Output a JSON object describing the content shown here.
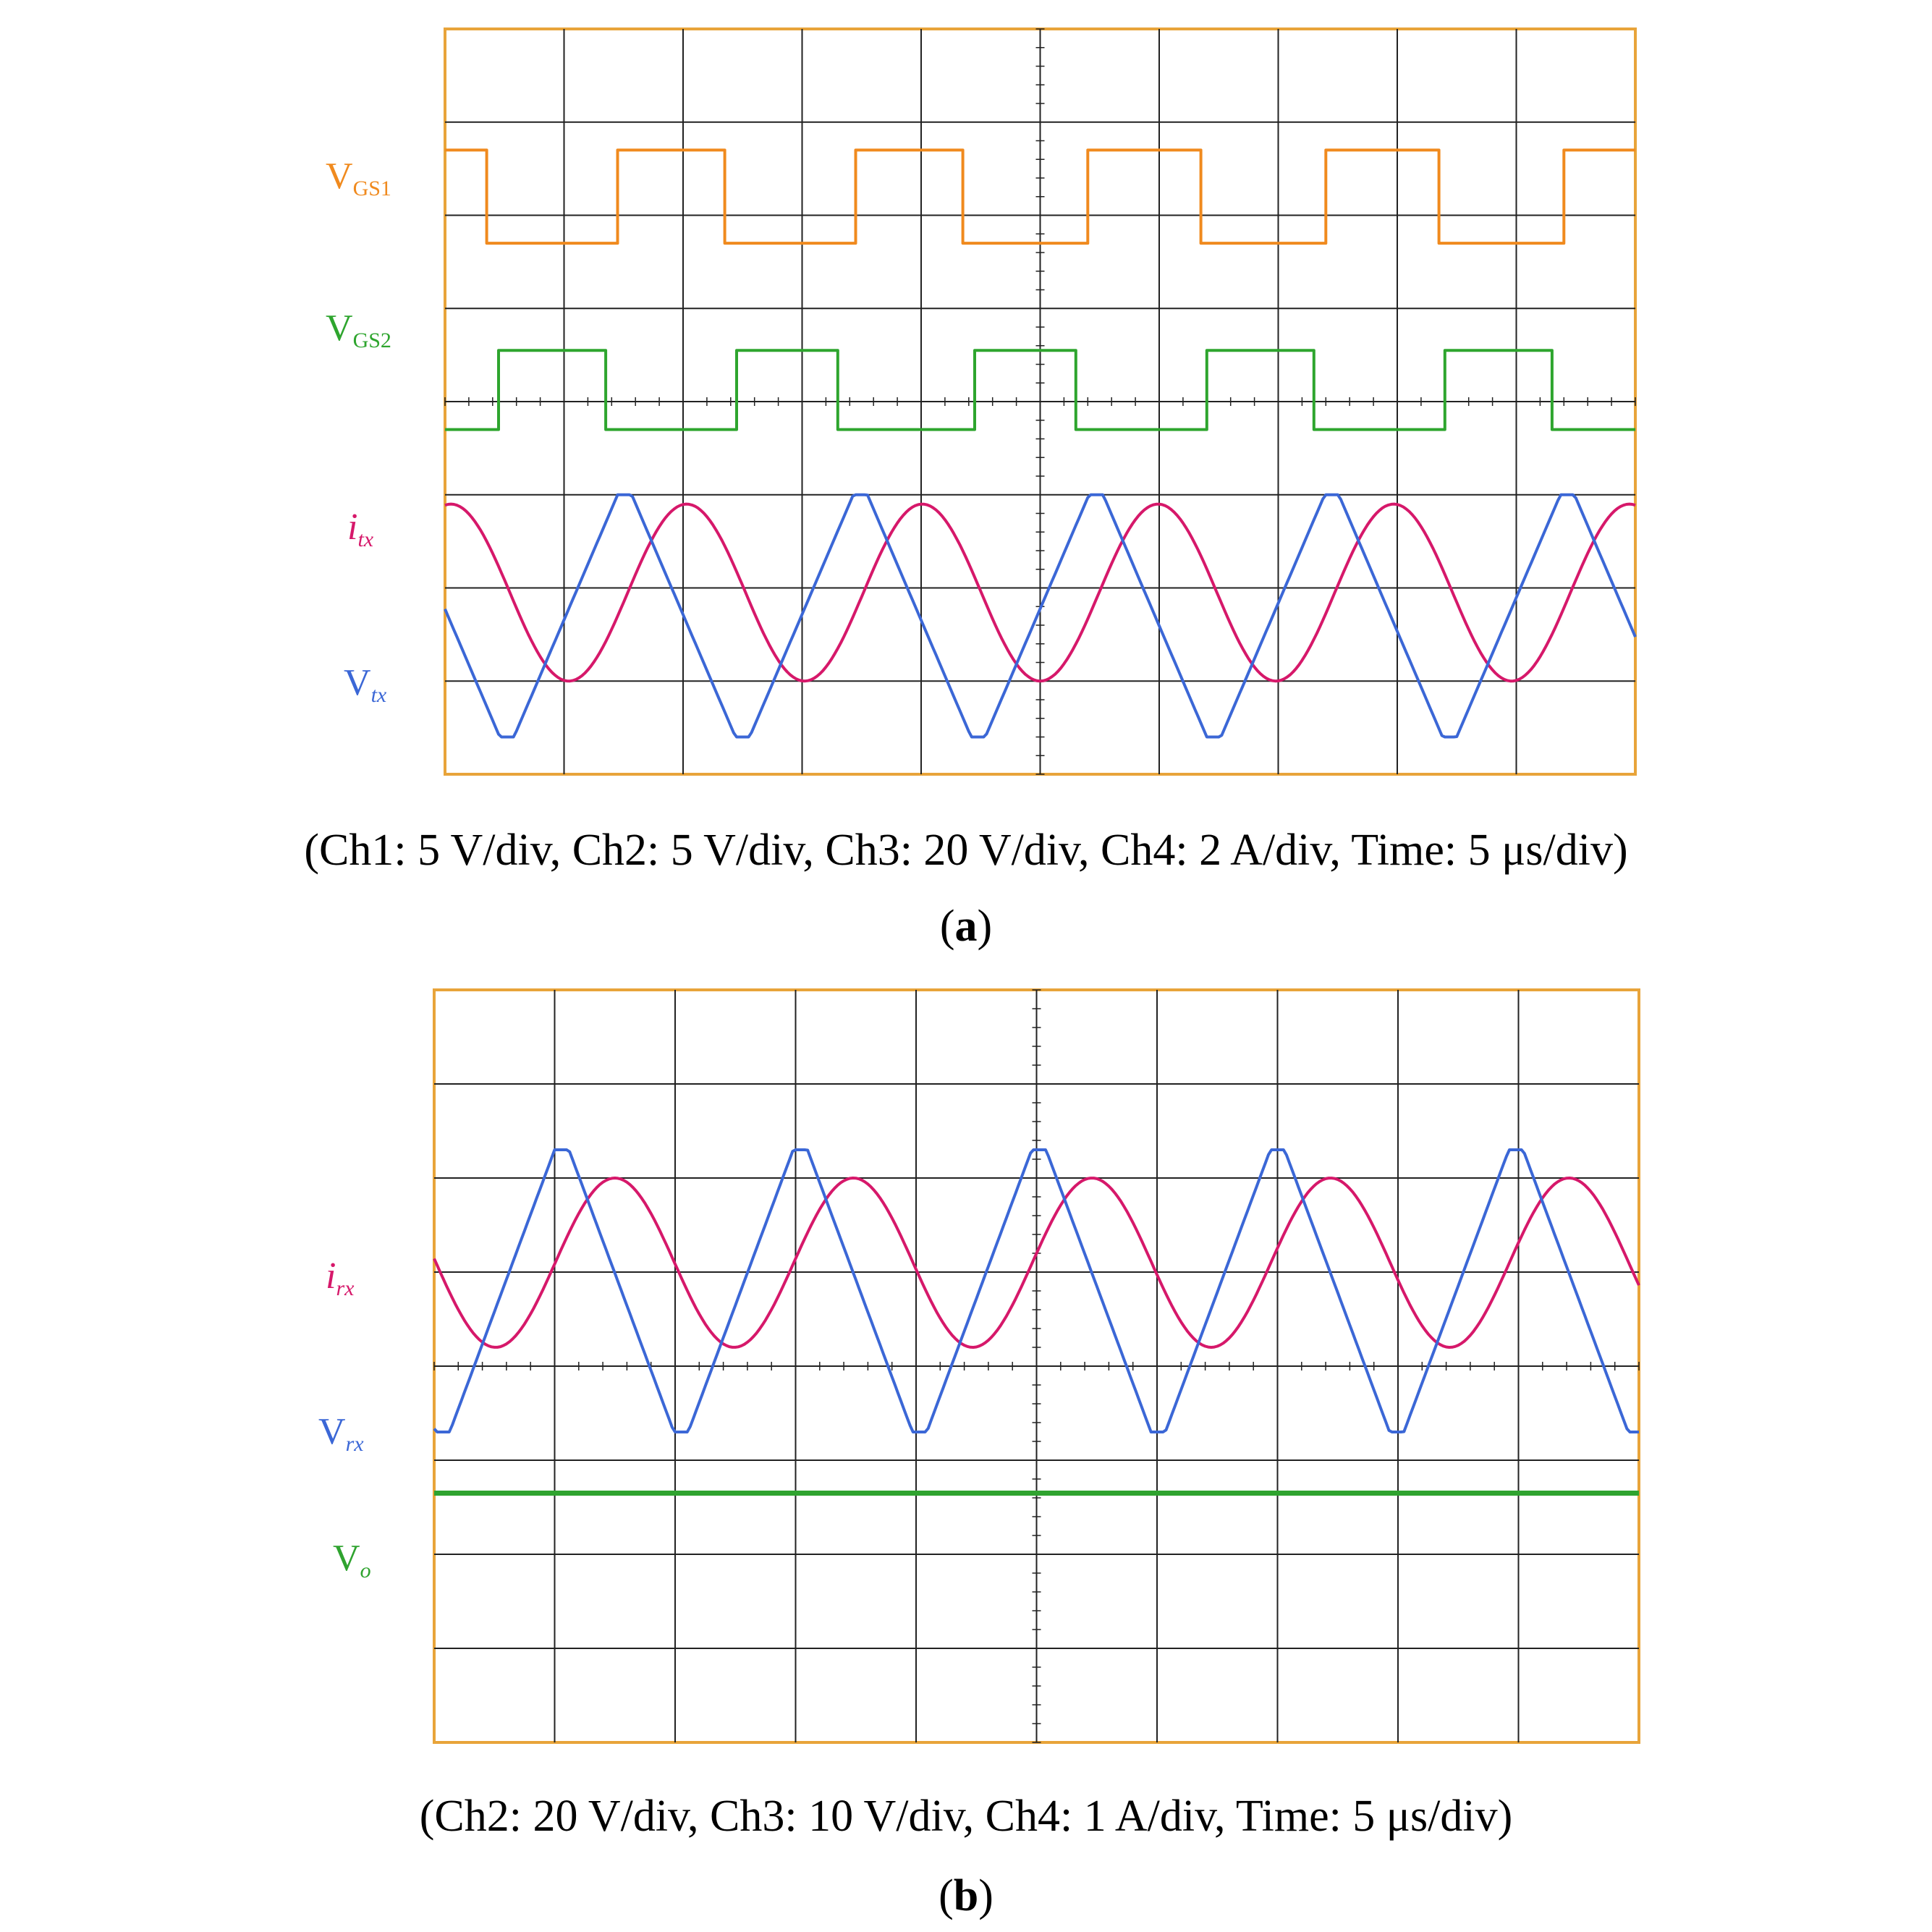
{
  "colors": {
    "vgs1": "#f08a1e",
    "vgs2": "#2ea52e",
    "i": "#d6186a",
    "v": "#3b67d6",
    "vo": "#2fa32f",
    "grid": "#222222",
    "frame": "#e8a43a"
  },
  "chart_data": [
    {
      "type": "line",
      "panel": "a",
      "title": "",
      "x_divisions": 10,
      "y_divisions": 8,
      "time_per_div_us": 5,
      "series": [
        {
          "name": "VGS1",
          "label_main": "V",
          "label_sub": "GS1",
          "color_key": "vgs1",
          "shape": "square",
          "x": [
            0,
            0.35,
            1.45,
            2.35,
            3.45,
            4.35,
            5.4,
            6.35,
            7.4,
            8.35,
            9.4,
            10
          ],
          "levels": [
            6.7,
            5.7
          ],
          "phase": "high"
        },
        {
          "name": "VGS2",
          "label_main": "V",
          "label_sub": "GS2",
          "color_key": "vgs2",
          "shape": "square",
          "x": [
            0,
            0.45,
            1.35,
            2.45,
            3.3,
            4.45,
            5.3,
            6.4,
            7.3,
            8.4,
            9.3,
            10
          ],
          "levels": [
            4.55,
            3.7
          ],
          "phase": "low"
        },
        {
          "name": "i_tx",
          "label_main": "i",
          "label_sub": "tx",
          "color_key": "i",
          "shape": "sine",
          "period_div": 1.98,
          "amplitude_div": 0.95,
          "offset_div": 1.95,
          "peak_at_div": 0.05
        },
        {
          "name": "V_tx",
          "label_main": "V",
          "label_sub": "tx",
          "color_key": "v",
          "shape": "triangle",
          "period_div": 1.98,
          "peak_div": 3.0,
          "trough_div": 0.4,
          "peak_at_div": 1.45
        }
      ],
      "caption": "(Ch1: 5 V/div, Ch2: 5 V/div, Ch3: 20 V/div, Ch4: 2 A/div, Time: 5 μs/div)",
      "tag": "a"
    },
    {
      "type": "line",
      "panel": "b",
      "title": "",
      "x_divisions": 10,
      "y_divisions": 8,
      "time_per_div_us": 5,
      "series": [
        {
          "name": "i_rx",
          "label_main": "i",
          "label_sub": "rx",
          "color_key": "i",
          "shape": "sine",
          "period_div": 1.98,
          "amplitude_div": 0.9,
          "offset_div": 5.1,
          "peak_at_div": 1.5
        },
        {
          "name": "V_rx",
          "label_main": "V",
          "label_sub": "rx",
          "color_key": "v",
          "shape": "triangle",
          "period_div": 1.98,
          "peak_div": 6.3,
          "trough_div": 3.3,
          "peak_at_div": 1.0
        },
        {
          "name": "V_o",
          "label_main": "V",
          "label_sub": "o",
          "color_key": "vo",
          "shape": "flat",
          "level_div": 2.65
        }
      ],
      "caption": "(Ch2: 20 V/div, Ch3: 10 V/div, Ch4: 1 A/div, Time: 5 μs/div)",
      "tag": "b"
    }
  ]
}
